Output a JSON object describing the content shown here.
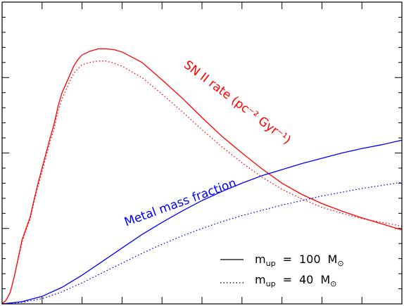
{
  "chart_data": {
    "type": "line",
    "title": "",
    "xlabel": "",
    "ylabel": "",
    "xlim": [
      0,
      10
    ],
    "ylim": [
      0,
      4
    ],
    "x_ticks": {
      "major": [
        0,
        1,
        2,
        3,
        4,
        5,
        6,
        7,
        8,
        9,
        10
      ],
      "minor_per_major": 0
    },
    "y_ticks": {
      "major": [
        0,
        1,
        2,
        3,
        4
      ],
      "minor_per_major": 5
    },
    "grid": false,
    "colors": {
      "sn_rate": "#ff0000",
      "metal": "#0000ff",
      "axis": "#000000"
    },
    "annotations": {
      "sn_rate": {
        "text": "SN II rate (pc⁻² Gyr⁻¹)"
      },
      "metal": {
        "text": "Metal mass fraction"
      }
    },
    "legend": {
      "position": "bottom-right",
      "entries": [
        {
          "style": "solid",
          "lhs": "m",
          "sub": "up",
          "eq": "=",
          "value": "100",
          "unit": "M",
          "sym": "⊙"
        },
        {
          "style": "dotted",
          "lhs": "m",
          "sub": "up",
          "eq": "=",
          "value": "40",
          "unit": "M",
          "sym": "⊙"
        }
      ]
    },
    "series": [
      {
        "id": "sn-rate-100",
        "style": "solid",
        "color": "#ff0000",
        "points": [
          [
            0,
            0.0
          ],
          [
            0.1,
            0.05
          ],
          [
            0.2,
            0.15
          ],
          [
            0.3,
            0.35
          ],
          [
            0.4,
            0.6
          ],
          [
            0.5,
            0.85
          ],
          [
            0.6,
            1.0
          ],
          [
            0.7,
            1.15
          ],
          [
            0.8,
            1.38
          ],
          [
            0.9,
            1.6
          ],
          [
            1.0,
            1.8
          ],
          [
            1.1,
            2.0
          ],
          [
            1.2,
            2.2
          ],
          [
            1.3,
            2.38
          ],
          [
            1.4,
            2.62
          ],
          [
            1.5,
            2.8
          ],
          [
            1.6,
            2.92
          ],
          [
            1.7,
            3.04
          ],
          [
            1.8,
            3.16
          ],
          [
            1.9,
            3.24
          ],
          [
            2.0,
            3.3
          ],
          [
            2.2,
            3.35
          ],
          [
            2.4,
            3.38
          ],
          [
            2.6,
            3.38
          ],
          [
            2.8,
            3.37
          ],
          [
            3.0,
            3.34
          ],
          [
            3.5,
            3.2
          ],
          [
            4.0,
            2.97
          ],
          [
            4.5,
            2.73
          ],
          [
            5.0,
            2.47
          ],
          [
            5.5,
            2.22
          ],
          [
            6.0,
            2.0
          ],
          [
            6.5,
            1.79
          ],
          [
            7.0,
            1.6
          ],
          [
            7.5,
            1.45
          ],
          [
            8.0,
            1.33
          ],
          [
            8.5,
            1.23
          ],
          [
            9.0,
            1.14
          ],
          [
            9.5,
            1.06
          ],
          [
            10.0,
            0.98
          ]
        ]
      },
      {
        "id": "sn-rate-40",
        "style": "dotted",
        "color": "#ff0000",
        "points": [
          [
            0,
            0.0
          ],
          [
            0.1,
            0.05
          ],
          [
            0.2,
            0.15
          ],
          [
            0.3,
            0.35
          ],
          [
            0.4,
            0.58
          ],
          [
            0.5,
            0.82
          ],
          [
            0.6,
            0.98
          ],
          [
            0.7,
            1.12
          ],
          [
            0.8,
            1.35
          ],
          [
            0.9,
            1.56
          ],
          [
            1.0,
            1.75
          ],
          [
            1.1,
            1.95
          ],
          [
            1.2,
            2.15
          ],
          [
            1.3,
            2.32
          ],
          [
            1.4,
            2.55
          ],
          [
            1.5,
            2.72
          ],
          [
            1.6,
            2.84
          ],
          [
            1.7,
            2.96
          ],
          [
            1.8,
            3.06
          ],
          [
            1.9,
            3.12
          ],
          [
            2.0,
            3.17
          ],
          [
            2.2,
            3.2
          ],
          [
            2.4,
            3.22
          ],
          [
            2.6,
            3.22
          ],
          [
            2.8,
            3.19
          ],
          [
            3.0,
            3.15
          ],
          [
            3.5,
            3.0
          ],
          [
            4.0,
            2.78
          ],
          [
            4.5,
            2.55
          ],
          [
            5.0,
            2.31
          ],
          [
            5.5,
            2.08
          ],
          [
            6.0,
            1.87
          ],
          [
            6.5,
            1.68
          ],
          [
            7.0,
            1.52
          ],
          [
            7.5,
            1.39
          ],
          [
            8.0,
            1.28
          ],
          [
            8.5,
            1.2
          ],
          [
            9.0,
            1.13
          ],
          [
            9.5,
            1.08
          ],
          [
            10.0,
            1.03
          ]
        ]
      },
      {
        "id": "metal-100",
        "style": "solid",
        "color": "#0000ff",
        "points": [
          [
            0,
            0.0
          ],
          [
            0.5,
            0.03
          ],
          [
            1.0,
            0.1
          ],
          [
            1.5,
            0.22
          ],
          [
            2.0,
            0.38
          ],
          [
            2.5,
            0.56
          ],
          [
            3.0,
            0.74
          ],
          [
            3.5,
            0.92
          ],
          [
            4.0,
            1.08
          ],
          [
            4.5,
            1.23
          ],
          [
            5.0,
            1.37
          ],
          [
            5.5,
            1.49
          ],
          [
            6.0,
            1.6
          ],
          [
            6.5,
            1.7
          ],
          [
            7.0,
            1.78
          ],
          [
            7.5,
            1.86
          ],
          [
            8.0,
            1.93
          ],
          [
            8.5,
            2.0
          ],
          [
            9.0,
            2.06
          ],
          [
            9.5,
            2.11
          ],
          [
            10.0,
            2.17
          ]
        ]
      },
      {
        "id": "metal-40",
        "style": "dotted",
        "color": "#0000ff",
        "points": [
          [
            0,
            0.0
          ],
          [
            0.5,
            0.02
          ],
          [
            1.0,
            0.07
          ],
          [
            1.5,
            0.16
          ],
          [
            2.0,
            0.28
          ],
          [
            2.5,
            0.41
          ],
          [
            3.0,
            0.54
          ],
          [
            3.5,
            0.67
          ],
          [
            4.0,
            0.79
          ],
          [
            4.5,
            0.9
          ],
          [
            5.0,
            1.0
          ],
          [
            5.5,
            1.09
          ],
          [
            6.0,
            1.17
          ],
          [
            6.5,
            1.24
          ],
          [
            7.0,
            1.31
          ],
          [
            7.5,
            1.37
          ],
          [
            8.0,
            1.43
          ],
          [
            8.5,
            1.48
          ],
          [
            9.0,
            1.53
          ],
          [
            9.5,
            1.57
          ],
          [
            10.0,
            1.61
          ]
        ]
      }
    ]
  }
}
